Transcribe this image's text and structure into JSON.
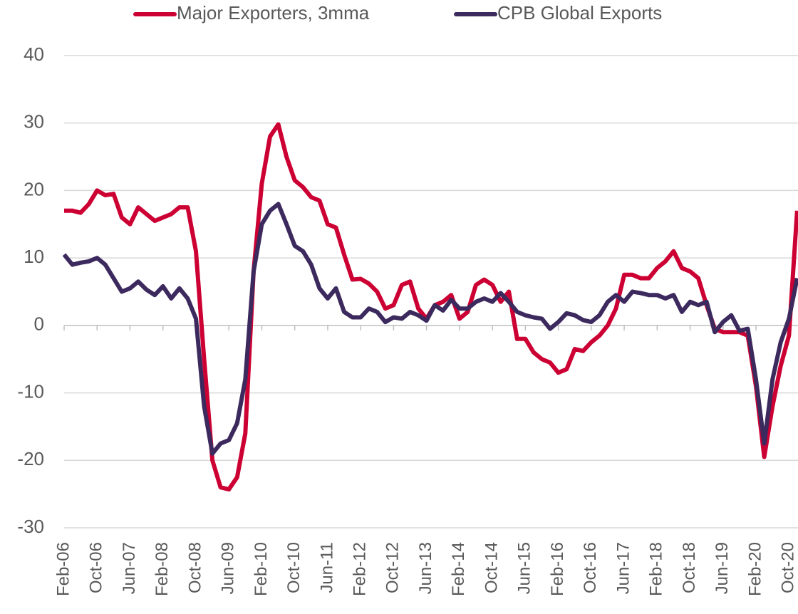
{
  "chart_data": {
    "type": "line",
    "categories": [
      "Feb-06",
      null,
      null,
      null,
      "Oct-06",
      null,
      null,
      null,
      "Jun-07",
      null,
      null,
      null,
      "Feb-08",
      null,
      null,
      null,
      "Oct-08",
      null,
      null,
      null,
      "Jun-09",
      null,
      null,
      null,
      "Feb-10",
      null,
      null,
      null,
      "Oct-10",
      null,
      null,
      null,
      "Jun-11",
      null,
      null,
      null,
      "Feb-12",
      null,
      null,
      null,
      "Oct-12",
      null,
      null,
      null,
      "Jun-13",
      null,
      null,
      null,
      "Feb-14",
      null,
      null,
      null,
      "Oct-14",
      null,
      null,
      null,
      "Jun-15",
      null,
      null,
      null,
      "Feb-16",
      null,
      null,
      null,
      "Oct-16",
      null,
      null,
      null,
      "Jun-17",
      null,
      null,
      null,
      "Feb-18",
      null,
      null,
      null,
      "Oct-18",
      null,
      null,
      null,
      "Jun-19",
      null,
      null,
      null,
      "Feb-20",
      null,
      null,
      null,
      "Oct-20",
      null
    ],
    "series": [
      {
        "name": "Major Exporters, 3mma",
        "color": "#cc0033",
        "values": [
          17,
          17,
          16.7,
          18,
          20,
          19.3,
          19.5,
          16,
          15,
          17.5,
          16.5,
          15.5,
          16,
          16.5,
          17.5,
          17.5,
          11,
          -5,
          -20,
          -24,
          -24.3,
          -22.5,
          -16,
          8,
          21,
          28,
          29.8,
          25,
          21.5,
          20.5,
          19,
          18.5,
          15,
          14.5,
          10.5,
          6.8,
          6.9,
          6.2,
          5,
          2.5,
          3,
          6,
          6.5,
          2.5,
          1,
          3,
          3.5,
          4.5,
          1,
          2,
          6,
          6.8,
          6,
          3.5,
          5,
          -2,
          -2,
          -4,
          -5,
          -5.5,
          -7,
          -6.5,
          -3.5,
          -3.8,
          -2.5,
          -1.5,
          0,
          2.5,
          7.5,
          7.5,
          7,
          7,
          8.5,
          9.5,
          11,
          8.5,
          8,
          7,
          3,
          -0.5,
          -1,
          -1,
          -1,
          -1.5,
          -9,
          -19.5,
          -12,
          -6,
          -1.5,
          17
        ]
      },
      {
        "name": "CPB Global Exports",
        "color": "#3c2a5e",
        "values": [
          10.5,
          9,
          9.3,
          9.5,
          10,
          9,
          7,
          5,
          5.5,
          6.5,
          5.3,
          4.5,
          5.8,
          4,
          5.5,
          4,
          1,
          -12,
          -19,
          -17.5,
          -17,
          -14.5,
          -8,
          8,
          15,
          17,
          18,
          15,
          11.8,
          11,
          9,
          5.5,
          4,
          5.5,
          2,
          1.2,
          1.2,
          2.5,
          2,
          0.5,
          1.2,
          1,
          2,
          1.5,
          0.7,
          3,
          2.2,
          3.8,
          2.5,
          2.5,
          3.5,
          4,
          3.5,
          4.8,
          3.5,
          2,
          1.5,
          1.2,
          1,
          -0.5,
          0.5,
          1.8,
          1.5,
          0.8,
          0.5,
          1.5,
          3.5,
          4.5,
          3.5,
          5,
          4.8,
          4.5,
          4.5,
          4,
          4.5,
          2,
          3.5,
          3,
          3.5,
          -1,
          0.5,
          1.5,
          -0.8,
          -0.5,
          -8,
          -17.5,
          -8,
          -2.5,
          1,
          7
        ]
      }
    ],
    "ylim": [
      -30,
      40
    ],
    "yticks": [
      -30,
      -20,
      -10,
      0,
      10,
      20,
      30,
      40
    ],
    "grid": true,
    "legend": "top"
  }
}
